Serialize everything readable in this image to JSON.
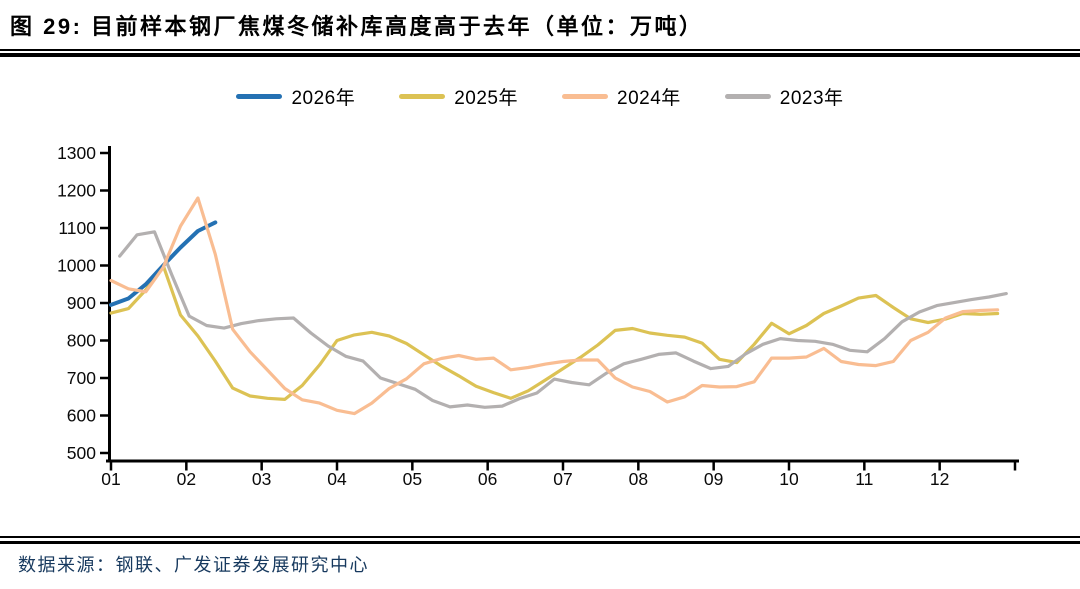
{
  "header": {
    "title": "图 29:  目前样本钢厂焦煤冬储补库高度高于去年（单位：万吨）"
  },
  "legend": [
    {
      "label": "2026年",
      "color": "#2471b3"
    },
    {
      "label": "2025年",
      "color": "#dcc254"
    },
    {
      "label": "2024年",
      "color": "#f9bd92"
    },
    {
      "label": "2023年",
      "color": "#b3b0b0"
    }
  ],
  "footer": {
    "source": "数据来源：钢联、广发证券发展研究中心"
  },
  "chart_data": {
    "type": "line",
    "title": "目前样本钢厂焦煤冬储补库高度高于去年",
    "unit": "万吨",
    "grid": false,
    "legend_position": "top",
    "x_axis": {
      "unit": "month",
      "tick_labels": [
        "01",
        "02",
        "03",
        "04",
        "05",
        "06",
        "07",
        "08",
        "09",
        "10",
        "11",
        "12"
      ]
    },
    "y_axis": {
      "range": [
        500,
        1300
      ],
      "ticks": [
        1300,
        1200,
        1100,
        1000,
        900,
        800,
        700,
        600,
        500
      ]
    },
    "series": [
      {
        "name": "2026年",
        "color": "#2471b3",
        "bold": true,
        "start_week": 1,
        "weekly_values": [
          895,
          912,
          950,
          1000,
          1048,
          1092,
          1115
        ]
      },
      {
        "name": "2025年",
        "color": "#dcc254",
        "bold": false,
        "start_week": 1,
        "weekly_values": [
          873,
          885,
          935,
          1000,
          868,
          812,
          745,
          673,
          652,
          646,
          643,
          680,
          735,
          800,
          815,
          822,
          812,
          792,
          762,
          732,
          706,
          678,
          661,
          646,
          666,
          695,
          725,
          755,
          788,
          827,
          832,
          820,
          814,
          809,
          793,
          750,
          741,
          790,
          846,
          818,
          840,
          872,
          892,
          913,
          920,
          888,
          858,
          848,
          857,
          872,
          870,
          872
        ]
      },
      {
        "name": "2024年",
        "color": "#f9bd92",
        "bold": false,
        "start_week": 1,
        "weekly_values": [
          960,
          938,
          930,
          995,
          1105,
          1180,
          1030,
          830,
          770,
          721,
          672,
          642,
          633,
          614,
          605,
          633,
          672,
          698,
          738,
          752,
          760,
          750,
          753,
          722,
          728,
          737,
          744,
          748,
          748,
          700,
          676,
          664,
          636,
          650,
          680,
          676,
          677,
          690,
          753,
          753,
          756,
          779,
          744,
          736,
          733,
          744,
          800,
          822,
          860,
          877,
          880,
          882
        ]
      },
      {
        "name": "2023年",
        "color": "#b3b0b0",
        "bold": false,
        "start_week": 1.5,
        "weekly_values": [
          1025,
          1082,
          1090,
          975,
          865,
          840,
          833,
          845,
          853,
          858,
          860,
          820,
          785,
          758,
          745,
          700,
          685,
          670,
          640,
          623,
          628,
          622,
          625,
          645,
          660,
          697,
          688,
          682,
          713,
          738,
          750,
          763,
          767,
          745,
          725,
          731,
          764,
          790,
          805,
          800,
          798,
          790,
          774,
          770,
          805,
          850,
          876,
          893,
          901,
          909,
          916,
          925
        ]
      }
    ]
  }
}
